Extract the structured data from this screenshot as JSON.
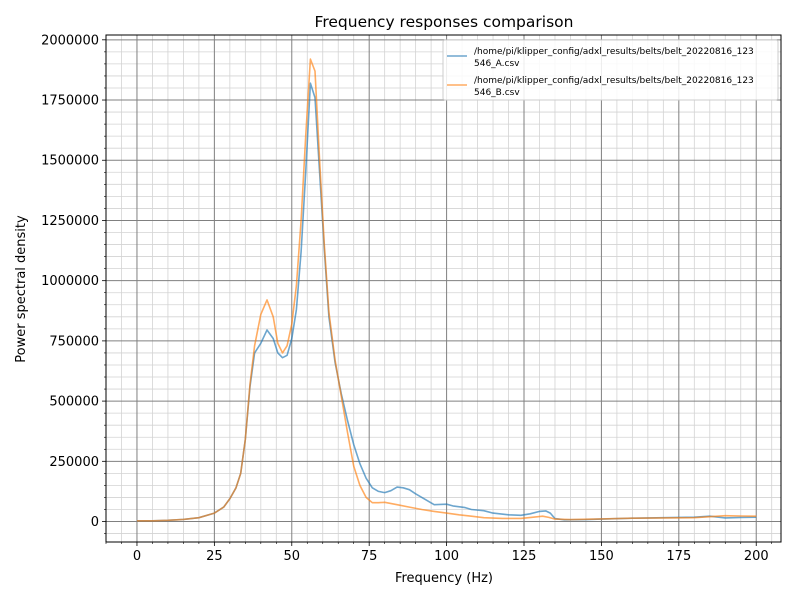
{
  "chart_data": {
    "type": "line",
    "title": "Frequency responses comparison",
    "xlabel": "Frequency (Hz)",
    "ylabel": "Power spectral density",
    "xlim": [
      -10,
      208
    ],
    "ylim": [
      -85000,
      2020000
    ],
    "x_ticks": [
      0,
      25,
      50,
      75,
      100,
      125,
      150,
      175,
      200
    ],
    "y_ticks": [
      0,
      250000,
      500000,
      750000,
      1000000,
      1250000,
      1500000,
      1750000,
      2000000
    ],
    "grid": true,
    "legend_position": "top-right",
    "series": [
      {
        "name": "/home/pi/klipper_config/adxl_results/belts/belt_20220816_123546_A.csv",
        "legend_lines": [
          "/home/pi/klipper_config/adxl_results/belts/belt_20220816_123",
          "546_A.csv"
        ],
        "color": "#1f77b4",
        "points": [
          [
            0,
            3000
          ],
          [
            5,
            3000
          ],
          [
            10,
            5000
          ],
          [
            15,
            9000
          ],
          [
            20,
            16000
          ],
          [
            25,
            35000
          ],
          [
            28,
            60000
          ],
          [
            30,
            95000
          ],
          [
            32,
            140000
          ],
          [
            33.5,
            200000
          ],
          [
            35,
            340000
          ],
          [
            36.5,
            560000
          ],
          [
            38,
            700000
          ],
          [
            40,
            740000
          ],
          [
            42,
            795000
          ],
          [
            44,
            760000
          ],
          [
            45.5,
            700000
          ],
          [
            47,
            680000
          ],
          [
            48.5,
            690000
          ],
          [
            50,
            760000
          ],
          [
            51.5,
            880000
          ],
          [
            53,
            1120000
          ],
          [
            54.5,
            1450000
          ],
          [
            56,
            1820000
          ],
          [
            57.5,
            1760000
          ],
          [
            59,
            1450000
          ],
          [
            60.5,
            1130000
          ],
          [
            62,
            850000
          ],
          [
            64,
            660000
          ],
          [
            66,
            530000
          ],
          [
            68,
            420000
          ],
          [
            70,
            320000
          ],
          [
            72,
            240000
          ],
          [
            74,
            180000
          ],
          [
            76,
            140000
          ],
          [
            78,
            125000
          ],
          [
            80,
            120000
          ],
          [
            82,
            128000
          ],
          [
            84,
            143000
          ],
          [
            86,
            140000
          ],
          [
            88,
            132000
          ],
          [
            90,
            115000
          ],
          [
            92,
            100000
          ],
          [
            94,
            85000
          ],
          [
            96,
            70000
          ],
          [
            100,
            72000
          ],
          [
            102,
            65000
          ],
          [
            106,
            58000
          ],
          [
            108,
            50000
          ],
          [
            112,
            45000
          ],
          [
            115,
            35000
          ],
          [
            120,
            28000
          ],
          [
            124,
            26000
          ],
          [
            127,
            32000
          ],
          [
            130,
            42000
          ],
          [
            132,
            44000
          ],
          [
            133.5,
            35000
          ],
          [
            135,
            12000
          ],
          [
            138,
            7000
          ],
          [
            145,
            8000
          ],
          [
            150,
            10000
          ],
          [
            160,
            14000
          ],
          [
            170,
            16000
          ],
          [
            180,
            18000
          ],
          [
            185,
            22000
          ],
          [
            190,
            15000
          ],
          [
            195,
            17000
          ],
          [
            200,
            18000
          ]
        ]
      },
      {
        "name": "/home/pi/klipper_config/adxl_results/belts/belt_20220816_123546_B.csv",
        "legend_lines": [
          "/home/pi/klipper_config/adxl_results/belts/belt_20220816_123",
          "546_B.csv"
        ],
        "color": "#ff7f0e",
        "points": [
          [
            0,
            3000
          ],
          [
            5,
            3000
          ],
          [
            10,
            5000
          ],
          [
            15,
            9000
          ],
          [
            20,
            16000
          ],
          [
            25,
            35000
          ],
          [
            28,
            60000
          ],
          [
            30,
            95000
          ],
          [
            32,
            140000
          ],
          [
            33.5,
            200000
          ],
          [
            35,
            340000
          ],
          [
            36.5,
            570000
          ],
          [
            38,
            730000
          ],
          [
            40,
            860000
          ],
          [
            42,
            920000
          ],
          [
            44,
            850000
          ],
          [
            45.5,
            740000
          ],
          [
            47,
            700000
          ],
          [
            48.5,
            730000
          ],
          [
            50,
            820000
          ],
          [
            51.5,
            980000
          ],
          [
            53,
            1250000
          ],
          [
            54.5,
            1600000
          ],
          [
            56,
            1920000
          ],
          [
            57.5,
            1870000
          ],
          [
            59,
            1500000
          ],
          [
            60.5,
            1150000
          ],
          [
            62,
            870000
          ],
          [
            64,
            670000
          ],
          [
            66,
            520000
          ],
          [
            68,
            370000
          ],
          [
            70,
            230000
          ],
          [
            72,
            150000
          ],
          [
            74,
            100000
          ],
          [
            76,
            78000
          ],
          [
            78,
            78000
          ],
          [
            80,
            80000
          ],
          [
            84,
            70000
          ],
          [
            88,
            60000
          ],
          [
            92,
            50000
          ],
          [
            96,
            42000
          ],
          [
            100,
            35000
          ],
          [
            104,
            28000
          ],
          [
            108,
            22000
          ],
          [
            112,
            16000
          ],
          [
            118,
            13000
          ],
          [
            124,
            13000
          ],
          [
            128,
            18000
          ],
          [
            131,
            22000
          ],
          [
            133,
            17000
          ],
          [
            135,
            10000
          ],
          [
            140,
            8000
          ],
          [
            150,
            11000
          ],
          [
            160,
            14000
          ],
          [
            170,
            15000
          ],
          [
            180,
            16000
          ],
          [
            185,
            20000
          ],
          [
            190,
            24000
          ],
          [
            195,
            23000
          ],
          [
            200,
            22000
          ]
        ]
      }
    ]
  }
}
